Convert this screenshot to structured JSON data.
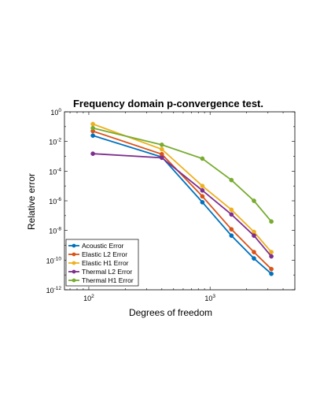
{
  "chart_data": {
    "type": "line",
    "title": "Frequency domain p-convergence test.",
    "xlabel": "Degrees of freedom",
    "ylabel": "Relative error",
    "x_scale": "log",
    "y_scale": "log",
    "xlim": [
      63,
      5000
    ],
    "ylim": [
      1e-12,
      1
    ],
    "x_ticks": [
      {
        "value": 100,
        "base": "10",
        "exp": "2"
      },
      {
        "value": 1000,
        "base": "10",
        "exp": "3"
      }
    ],
    "y_ticks": [
      {
        "value": 1,
        "base": "10",
        "exp": "0"
      },
      {
        "value": 0.01,
        "base": "10",
        "exp": "-2"
      },
      {
        "value": 0.0001,
        "base": "10",
        "exp": "-4"
      },
      {
        "value": 1e-06,
        "base": "10",
        "exp": "-6"
      },
      {
        "value": 1e-08,
        "base": "10",
        "exp": "-8"
      },
      {
        "value": 1e-10,
        "base": "10",
        "exp": "-10"
      },
      {
        "value": 1e-12,
        "base": "10",
        "exp": "-12"
      }
    ],
    "grid": false,
    "legend_position": "bottom-left",
    "x": [
      108,
      400,
      864,
      1500,
      2300,
      3200
    ],
    "series": [
      {
        "name": "Acoustic Error",
        "color": "#0072BD",
        "values": [
          0.025,
          0.0009,
          8e-07,
          4.5e-09,
          1.3e-10,
          1.2e-11
        ]
      },
      {
        "name": "Elastic L2 Error",
        "color": "#D95319",
        "values": [
          0.05,
          0.0014,
          2e-06,
          1.2e-08,
          3.5e-10,
          2.5e-11
        ]
      },
      {
        "name": "Elastic H1 Error",
        "color": "#EDB120",
        "values": [
          0.15,
          0.003,
          1e-05,
          2.5e-07,
          8e-09,
          3.5e-10
        ]
      },
      {
        "name": "Thermal L2 Error",
        "color": "#7E2F8E",
        "values": [
          0.0015,
          0.0008,
          5e-06,
          1.2e-07,
          4.5e-09,
          1.8e-10
        ]
      },
      {
        "name": "Thermal H1 Error",
        "color": "#77AC30",
        "values": [
          0.08,
          0.006,
          0.0007,
          2.5e-05,
          1e-06,
          4e-08
        ]
      }
    ]
  }
}
